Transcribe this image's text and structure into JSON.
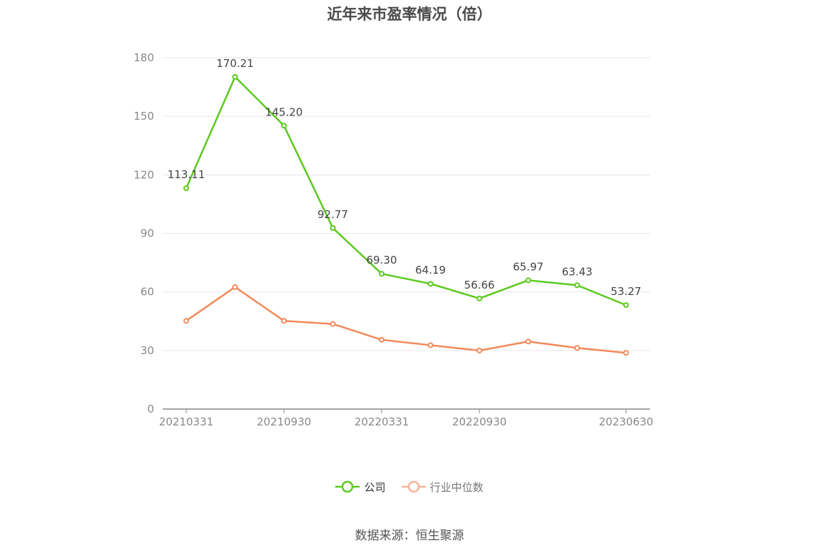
{
  "chart_data": {
    "type": "line",
    "title": "近年来市盈率情况（倍）",
    "x": [
      "20210331",
      "20210630",
      "20210930",
      "20211231",
      "20220331",
      "20220630",
      "20220930",
      "20221231",
      "20230331",
      "20230630"
    ],
    "x_tick_labels": [
      "20210331",
      "20210930",
      "20220331",
      "20220930",
      "20230630"
    ],
    "y_ticks": [
      0,
      30,
      60,
      90,
      120,
      150,
      180
    ],
    "ylim": [
      0,
      180
    ],
    "grid": true,
    "legend_position": "bottom",
    "series": [
      {
        "name": "公司",
        "color": "#5cc91f",
        "values": [
          113.11,
          170.21,
          145.2,
          92.77,
          69.3,
          64.19,
          56.66,
          65.97,
          63.43,
          53.27
        ],
        "labels": [
          "113.11",
          "170.21",
          "145.20",
          "92.77",
          "69.30",
          "64.19",
          "56.66",
          "65.97",
          "63.43",
          "53.27"
        ]
      },
      {
        "name": "行业中位数",
        "color": "#f28a5a",
        "values": [
          45.2,
          62.5,
          45.2,
          43.6,
          35.5,
          32.7,
          30.0,
          34.6,
          31.3,
          28.8
        ]
      }
    ]
  },
  "source_text": "数据来源：恒生聚源"
}
